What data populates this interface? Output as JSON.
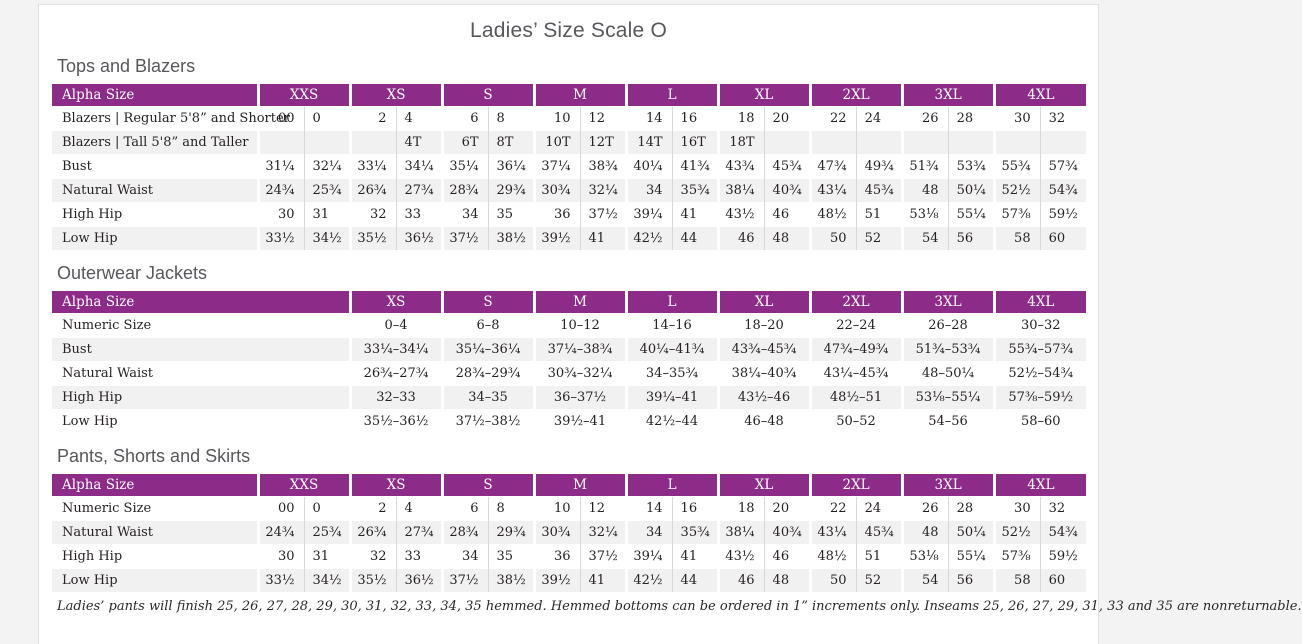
{
  "page": {
    "title": "Ladies’ Size Scale O",
    "footnote": "Ladies’ pants will finish 25, 26, 27, 28, 29, 30, 31, 32, 33, 34, 35 hemmed. Hemmed bottoms can be ordered in 1” increments only. Inseams 25, 26, 27, 29, 31, 33 and 35 are nonreturnable.",
    "colors": {
      "accent_purple": "#8d2b89",
      "alt_row_gray": "#f2f1f1",
      "heading_gray": "#57585b"
    }
  },
  "tables": [
    {
      "section": "Tops and Blazers",
      "type": "paired",
      "header_label": "Alpha Size",
      "sizes": [
        "XXS",
        "XS",
        "S",
        "M",
        "L",
        "XL",
        "2XL",
        "3XL",
        "4XL"
      ],
      "rows": [
        {
          "label": "Blazers  |  Regular 5'8” and Shorter",
          "values": [
            "00",
            "0",
            "2",
            "4",
            "6",
            "8",
            "10",
            "12",
            "14",
            "16",
            "18",
            "20",
            "22",
            "24",
            "26",
            "28",
            "30",
            "32"
          ]
        },
        {
          "label": "Blazers  |  Tall 5'8” and Taller",
          "values": [
            "",
            "",
            "",
            "4T",
            "6T",
            "8T",
            "10T",
            "12T",
            "14T",
            "16T",
            "18T",
            "",
            "",
            "",
            "",
            "",
            "",
            ""
          ]
        },
        {
          "label": "Bust",
          "values": [
            "31¼",
            "32¼",
            "33¼",
            "34¼",
            "35¼",
            "36¼",
            "37¼",
            "38¾",
            "40¼",
            "41¾",
            "43¾",
            "45¾",
            "47¾",
            "49¾",
            "51¾",
            "53¾",
            "55¾",
            "57¾"
          ]
        },
        {
          "label": "Natural Waist",
          "values": [
            "24¾",
            "25¾",
            "26¾",
            "27¾",
            "28¾",
            "29¾",
            "30¾",
            "32¼",
            "34",
            "35¾",
            "38¼",
            "40¾",
            "43¼",
            "45¾",
            "48",
            "50¼",
            "52½",
            "54¾"
          ]
        },
        {
          "label": "High Hip",
          "values": [
            "30",
            "31",
            "32",
            "33",
            "34",
            "35",
            "36",
            "37½",
            "39¼",
            "41",
            "43½",
            "46",
            "48½",
            "51",
            "53⅛",
            "55¼",
            "57⅜",
            "59½"
          ]
        },
        {
          "label": "Low Hip",
          "values": [
            "33½",
            "34½",
            "35½",
            "36½",
            "37½",
            "38½",
            "39½",
            "41",
            "42½",
            "44",
            "46",
            "48",
            "50",
            "52",
            "54",
            "56",
            "58",
            "60"
          ]
        }
      ]
    },
    {
      "section": "Outerwear Jackets",
      "type": "single",
      "header_label": "Alpha Size",
      "sizes": [
        "XS",
        "S",
        "M",
        "L",
        "XL",
        "2XL",
        "3XL",
        "4XL"
      ],
      "rows": [
        {
          "label": "Numeric Size",
          "values": [
            "0–4",
            "6–8",
            "10–12",
            "14–16",
            "18–20",
            "22–24",
            "26–28",
            "30–32"
          ]
        },
        {
          "label": "Bust",
          "values": [
            "33¼–34¼",
            "35¼–36¼",
            "37¼–38¾",
            "40¼–41¾",
            "43¾–45¾",
            "47¾–49¾",
            "51¾–53¾",
            "55¾–57¾"
          ]
        },
        {
          "label": "Natural Waist",
          "values": [
            "26¾–27¾",
            "28¾–29¾",
            "30¾–32¼",
            "34–35¾",
            "38¼–40¾",
            "43¼–45¾",
            "48–50¼",
            "52½–54¾"
          ]
        },
        {
          "label": "High Hip",
          "values": [
            "32–33",
            "34–35",
            "36–37½",
            "39¼–41",
            "43½–46",
            "48½–51",
            "53⅛–55¼",
            "57⅜–59½"
          ]
        },
        {
          "label": "Low Hip",
          "values": [
            "35½–36½",
            "37½–38½",
            "39½–41",
            "42½–44",
            "46–48",
            "50–52",
            "54–56",
            "58–60"
          ]
        }
      ]
    },
    {
      "section": "Pants, Shorts and Skirts",
      "type": "paired",
      "header_label": "Alpha Size",
      "sizes": [
        "XXS",
        "XS",
        "S",
        "M",
        "L",
        "XL",
        "2XL",
        "3XL",
        "4XL"
      ],
      "rows": [
        {
          "label": "Numeric Size",
          "values": [
            "00",
            "0",
            "2",
            "4",
            "6",
            "8",
            "10",
            "12",
            "14",
            "16",
            "18",
            "20",
            "22",
            "24",
            "26",
            "28",
            "30",
            "32"
          ]
        },
        {
          "label": "Natural Waist",
          "values": [
            "24¾",
            "25¾",
            "26¾",
            "27¾",
            "28¾",
            "29¾",
            "30¾",
            "32¼",
            "34",
            "35¾",
            "38¼",
            "40¾",
            "43¼",
            "45¾",
            "48",
            "50¼",
            "52½",
            "54¾"
          ]
        },
        {
          "label": "High Hip",
          "values": [
            "30",
            "31",
            "32",
            "33",
            "34",
            "35",
            "36",
            "37½",
            "39¼",
            "41",
            "43½",
            "46",
            "48½",
            "51",
            "53⅛",
            "55¼",
            "57⅜",
            "59½"
          ]
        },
        {
          "label": "Low Hip",
          "values": [
            "33½",
            "34½",
            "35½",
            "36½",
            "37½",
            "38½",
            "39½",
            "41",
            "42½",
            "44",
            "46",
            "48",
            "50",
            "52",
            "54",
            "56",
            "58",
            "60"
          ]
        }
      ]
    }
  ]
}
